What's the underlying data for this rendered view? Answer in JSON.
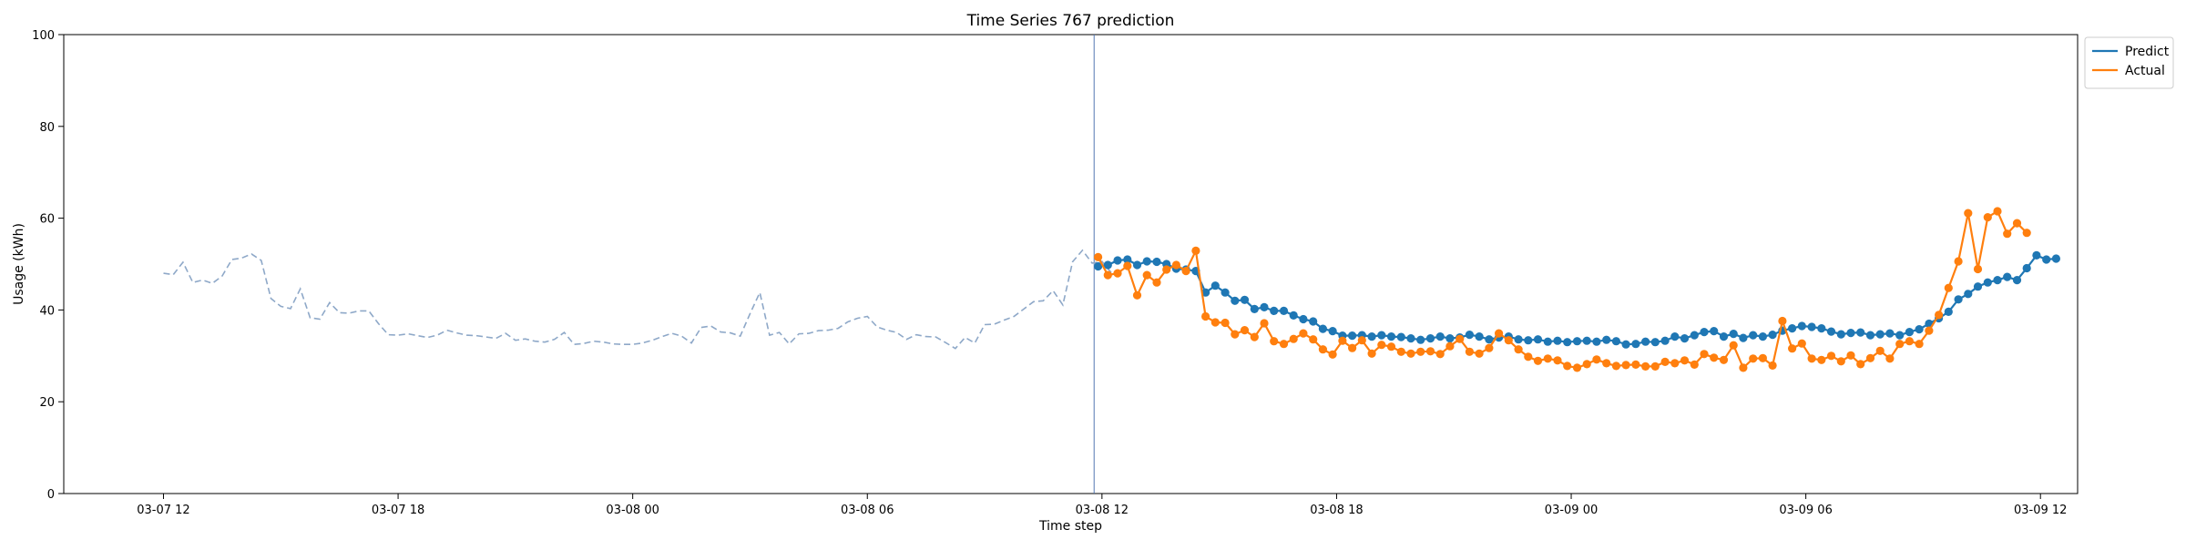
{
  "chart_data": {
    "type": "line",
    "title": "Time Series 767 prediction",
    "xlabel": "Time step",
    "ylabel": "Usage (kWh)",
    "ylim": [
      0,
      100
    ],
    "yticks": [
      0,
      20,
      40,
      60,
      80,
      100
    ],
    "x_start": "2017-03-07 12:00",
    "x_step_minutes": 15,
    "xlim_hours": [
      -2.55,
      48.95
    ],
    "xticks": [
      {
        "label": "03-07 12",
        "hours": 0
      },
      {
        "label": "03-07 18",
        "hours": 6
      },
      {
        "label": "03-08 00",
        "hours": 12
      },
      {
        "label": "03-08 06",
        "hours": 18
      },
      {
        "label": "03-08 12",
        "hours": 24
      },
      {
        "label": "03-08 18",
        "hours": 30
      },
      {
        "label": "03-09 00",
        "hours": 36
      },
      {
        "label": "03-09 06",
        "hours": 42
      },
      {
        "label": "03-09 12",
        "hours": 48
      }
    ],
    "forecast_start_hours": 23.8,
    "legend_position": "upper right outside",
    "series": [
      {
        "name": "Predict",
        "color": "#1f77b4",
        "start_hours": 23.9,
        "values": [
          49.5,
          49.8,
          50.8,
          51.0,
          49.8,
          50.6,
          50.5,
          50.0,
          49.0,
          48.8,
          48.5,
          43.8,
          45.3,
          43.8,
          42.0,
          42.2,
          40.2,
          40.6,
          39.8,
          39.8,
          38.8,
          38.0,
          37.5,
          35.9,
          35.4,
          34.4,
          34.4,
          34.5,
          34.2,
          34.5,
          34.2,
          34.1,
          33.8,
          33.5,
          33.8,
          34.2,
          33.8,
          34.0,
          34.6,
          34.2,
          33.6,
          34.0,
          34.2,
          33.6,
          33.4,
          33.6,
          33.1,
          33.3,
          33.0,
          33.2,
          33.3,
          33.1,
          33.5,
          33.2,
          32.5,
          32.6,
          33.1,
          33.0,
          33.3,
          34.2,
          33.8,
          34.5,
          35.2,
          35.4,
          34.2,
          34.8,
          33.9,
          34.5,
          34.2,
          34.6,
          35.5,
          36.0,
          36.5,
          36.3,
          36.0,
          35.3,
          34.7,
          35.0,
          35.1,
          34.5,
          34.7,
          34.9,
          34.5,
          35.2,
          35.8,
          37.0,
          38.2,
          39.6,
          42.3,
          43.5,
          45.1,
          46.0,
          46.5,
          47.2,
          46.5,
          49.1,
          51.9,
          51.0,
          51.2
        ]
      },
      {
        "name": "Actual",
        "color": "#ff7f0e",
        "start_hours": 23.9,
        "values": [
          51.5,
          47.6,
          48.0,
          49.6,
          43.2,
          47.6,
          46.0,
          48.8,
          49.8,
          48.5,
          52.9,
          38.6,
          37.3,
          37.2,
          34.7,
          35.6,
          34.1,
          37.1,
          33.2,
          32.6,
          33.7,
          34.9,
          33.6,
          31.4,
          30.3,
          33.3,
          31.7,
          33.4,
          30.5,
          32.4,
          32.0,
          30.9,
          30.5,
          30.9,
          31.0,
          30.4,
          32.1,
          33.7,
          30.9,
          30.5,
          31.7,
          34.9,
          33.4,
          31.4,
          29.8,
          28.9,
          29.4,
          29.0,
          27.8,
          27.4,
          28.2,
          29.2,
          28.4,
          27.8,
          28.0,
          28.1,
          27.7,
          27.7,
          28.7,
          28.4,
          29.0,
          28.1,
          30.4,
          29.6,
          29.1,
          32.3,
          27.4,
          29.4,
          29.5,
          27.9,
          37.6,
          31.6,
          32.7,
          29.4,
          29.1,
          30.0,
          28.8,
          30.1,
          28.2,
          29.5,
          31.1,
          29.4,
          32.6,
          33.2,
          32.6,
          35.5,
          38.9,
          44.8,
          50.6,
          61.1,
          48.9,
          60.2,
          61.5,
          56.6,
          58.9,
          56.8
        ]
      },
      {
        "name": "",
        "color": "#8ea8c8",
        "dashed": true,
        "start_hours": 0,
        "values": [
          48.0,
          47.7,
          50.4,
          46.0,
          46.5,
          45.8,
          47.4,
          51.0,
          51.3,
          52.2,
          50.8,
          42.5,
          40.8,
          40.3,
          44.6,
          38.3,
          38.0,
          41.6,
          39.4,
          39.3,
          39.8,
          39.8,
          37.0,
          34.6,
          34.5,
          34.8,
          34.4,
          34.0,
          34.5,
          35.6,
          35.0,
          34.5,
          34.4,
          34.1,
          33.8,
          34.9,
          33.4,
          33.7,
          33.2,
          33.0,
          33.6,
          35.1,
          32.5,
          32.7,
          33.2,
          33.0,
          32.6,
          32.5,
          32.5,
          32.8,
          33.4,
          34.2,
          34.9,
          34.3,
          32.8,
          36.2,
          36.5,
          35.2,
          35.0,
          34.3,
          39.2,
          43.8,
          34.5,
          35.1,
          32.6,
          34.8,
          34.9,
          35.5,
          35.6,
          36.0,
          37.4,
          38.2,
          38.6,
          36.3,
          35.6,
          35.1,
          33.6,
          34.6,
          34.2,
          34.1,
          32.9,
          31.6,
          34.0,
          32.8,
          36.8,
          36.9,
          37.8,
          38.6,
          40.2,
          41.8,
          42.0,
          44.2,
          41.1,
          50.5,
          53.0,
          50.2,
          50.6,
          48.0
        ]
      }
    ]
  }
}
